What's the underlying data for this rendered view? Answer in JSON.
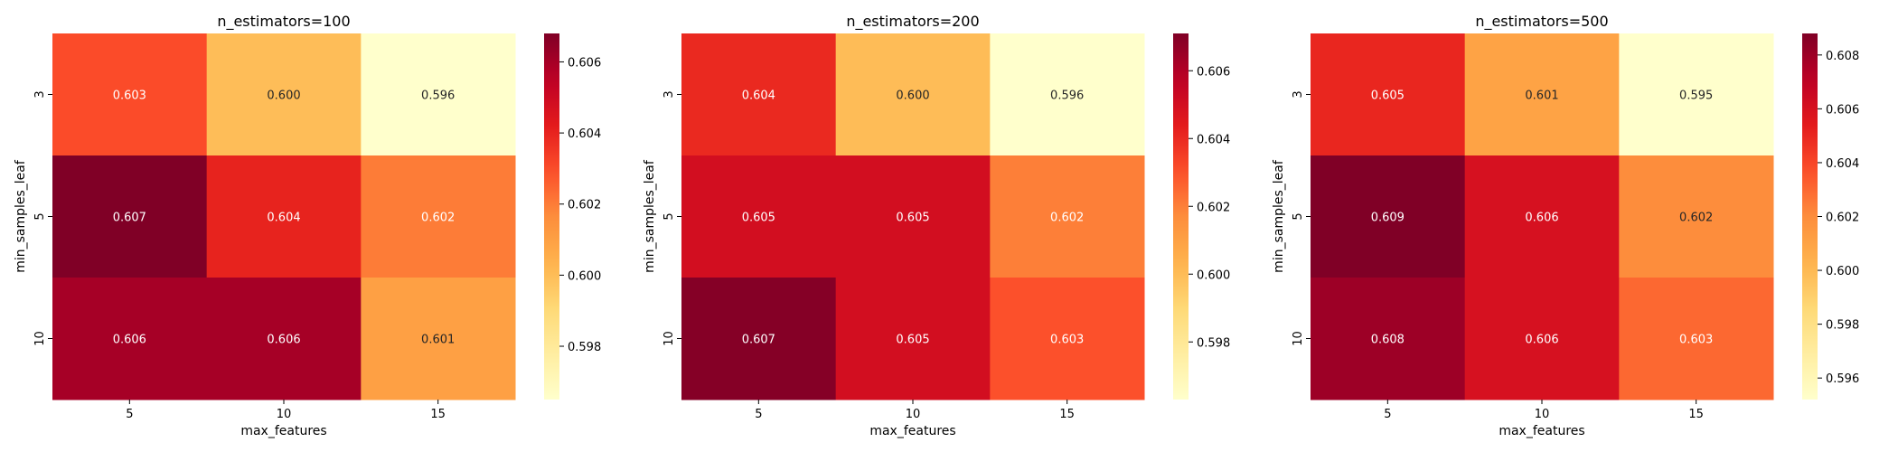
{
  "chart_data": [
    {
      "type": "heatmap",
      "title": "n_estimators=100",
      "xlabel": "max_features",
      "ylabel": "min_samples_leaf",
      "x_categories": [
        "5",
        "10",
        "15"
      ],
      "y_categories": [
        "3",
        "5",
        "10"
      ],
      "values": [
        [
          0.603,
          0.6,
          0.596
        ],
        [
          0.607,
          0.604,
          0.602
        ],
        [
          0.606,
          0.606,
          0.601
        ]
      ],
      "color_range": [
        0.5965,
        0.6068
      ],
      "colorbar_ticks": [
        "0.598",
        "0.600",
        "0.602",
        "0.604",
        "0.606"
      ],
      "colormap": "YlOrRd"
    },
    {
      "type": "heatmap",
      "title": "n_estimators=200",
      "xlabel": "max_features",
      "ylabel": "min_samples_leaf",
      "x_categories": [
        "5",
        "10",
        "15"
      ],
      "y_categories": [
        "3",
        "5",
        "10"
      ],
      "values": [
        [
          0.604,
          0.6,
          0.596
        ],
        [
          0.605,
          0.605,
          0.602
        ],
        [
          0.607,
          0.605,
          0.603
        ]
      ],
      "color_range": [
        0.5963,
        0.6071
      ],
      "colorbar_ticks": [
        "0.598",
        "0.600",
        "0.602",
        "0.604",
        "0.606"
      ],
      "colormap": "YlOrRd"
    },
    {
      "type": "heatmap",
      "title": "n_estimators=500",
      "xlabel": "max_features",
      "ylabel": "min_samples_leaf",
      "x_categories": [
        "5",
        "10",
        "15"
      ],
      "y_categories": [
        "3",
        "5",
        "10"
      ],
      "values": [
        [
          0.605,
          0.601,
          0.595
        ],
        [
          0.609,
          0.606,
          0.602
        ],
        [
          0.608,
          0.606,
          0.603
        ]
      ],
      "color_range": [
        0.5952,
        0.6088
      ],
      "colorbar_ticks": [
        "0.596",
        "0.598",
        "0.600",
        "0.602",
        "0.604",
        "0.606",
        "0.608"
      ],
      "colormap": "YlOrRd"
    }
  ],
  "colors": {
    "ramp": [
      "#ffffcc",
      "#ffeda0",
      "#fed976",
      "#feb24c",
      "#fd8d3c",
      "#fc4e2a",
      "#e31a1c",
      "#bd0026",
      "#800026"
    ],
    "axis": "#000000",
    "dark_text": "#262626",
    "light_text": "#ffffff"
  }
}
